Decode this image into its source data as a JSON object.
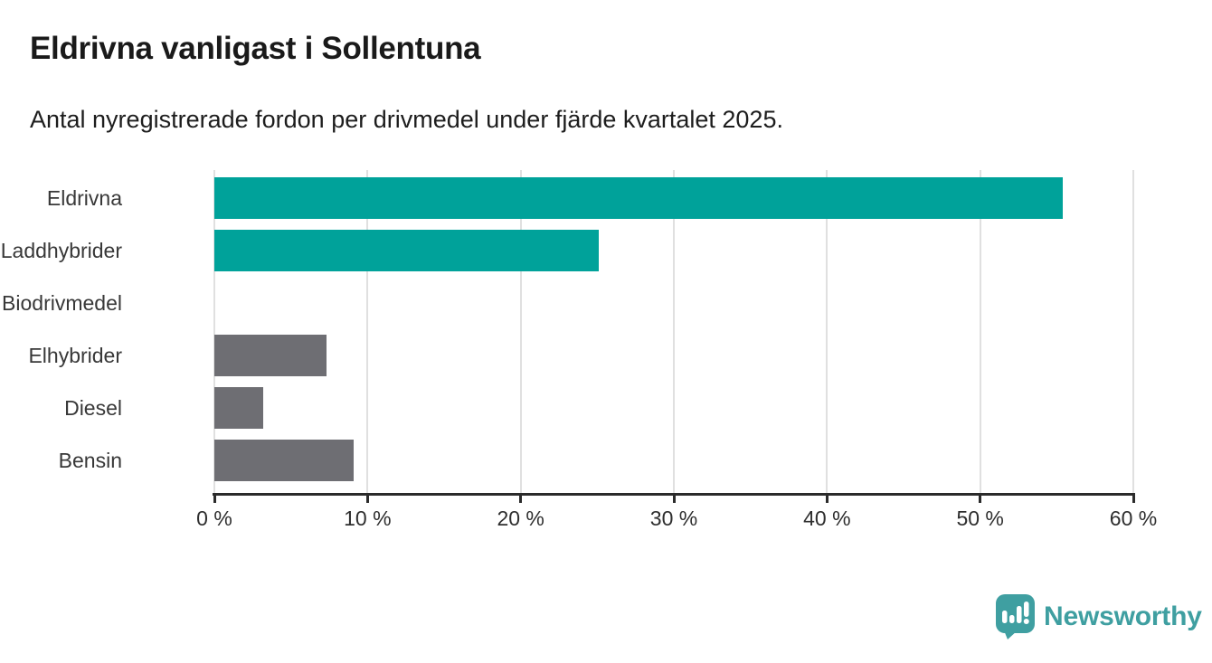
{
  "header": {
    "title": "Eldrivna vanligast i Sollentuna",
    "subtitle": "Antal nyregistrerade fordon per drivmedel under fjärde kvartalet 2025."
  },
  "chart_data": {
    "type": "bar",
    "orientation": "horizontal",
    "title": "Eldrivna vanligast i Sollentuna",
    "subtitle": "Antal nyregistrerade fordon per drivmedel under fjärde kvartalet 2025.",
    "categories": [
      "Eldrivna",
      "Laddhybrider",
      "Biodrivmedel",
      "Elhybrider",
      "Diesel",
      "Bensin"
    ],
    "values": [
      55.4,
      25.1,
      0,
      7.3,
      3.2,
      9.1
    ],
    "unit": "%",
    "bar_colors": [
      "#00a29a",
      "#00a29a",
      "#6e6e73",
      "#6e6e73",
      "#6e6e73",
      "#6e6e73"
    ],
    "xlim": [
      0,
      60
    ],
    "x_ticks": [
      0,
      10,
      20,
      30,
      40,
      50,
      60
    ],
    "x_tick_suffix": " %",
    "grid": true,
    "legend": "none",
    "xlabel": "",
    "ylabel": ""
  },
  "footer": {
    "brand": "Newsworthy"
  },
  "colors": {
    "accent_teal": "#00a29a",
    "neutral_gray": "#6e6e73",
    "brand_teal": "#3f9fa1",
    "grid": "#e0e0e0",
    "axis": "#2b2b2b",
    "text": "#1a1a1a"
  }
}
